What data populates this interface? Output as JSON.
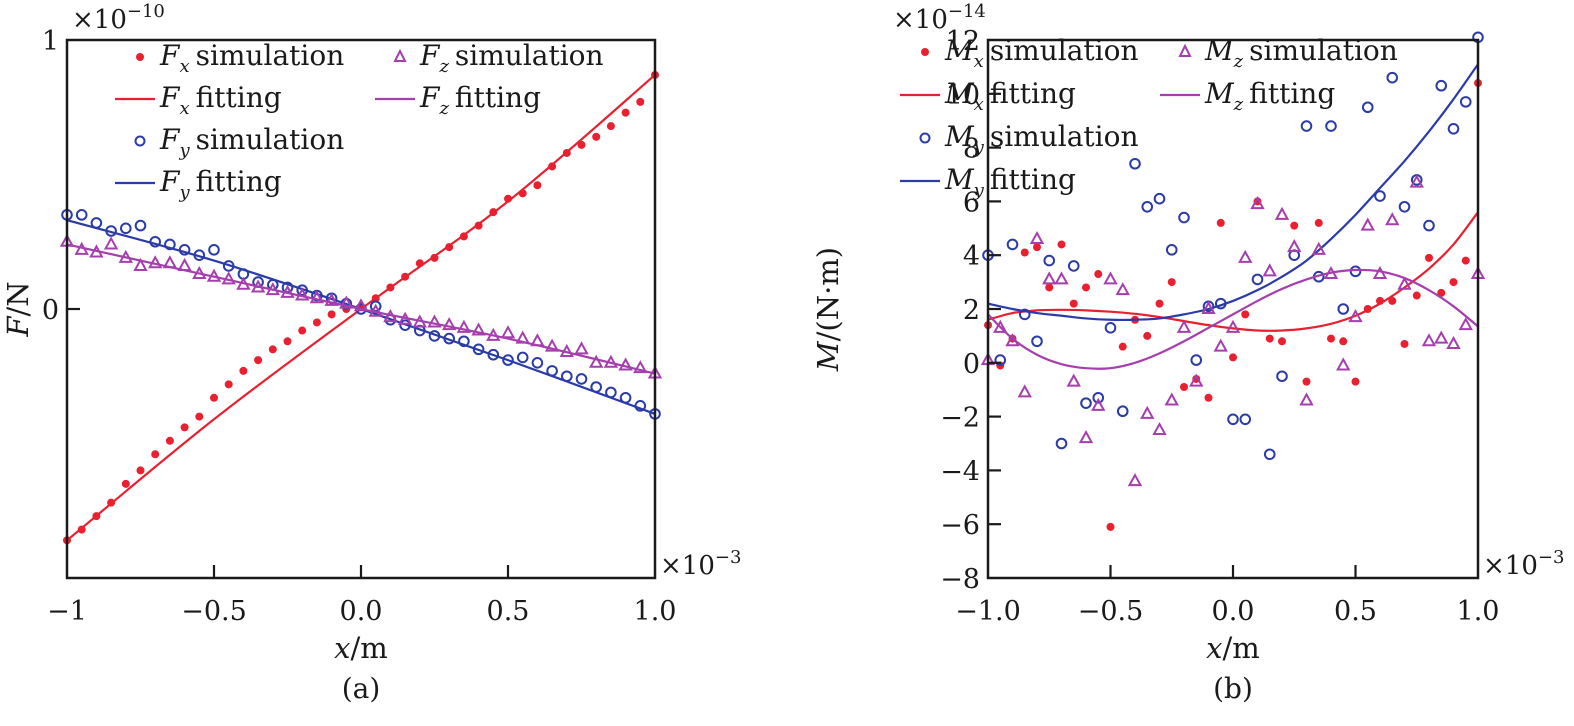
{
  "chart_data": [
    {
      "id": "a",
      "type": "scatter",
      "caption": "(a)",
      "xlabel": "x/m",
      "xlabel_var": "x",
      "xlabel_unit": "/m",
      "ylabel": "F/N",
      "ylabel_var": "F",
      "ylabel_unit": "/N",
      "x_multiplier": "×10",
      "x_multiplier_exp": "−3",
      "y_multiplier": "×10",
      "y_multiplier_exp": "−10",
      "xlim": [
        -1.0,
        1.0
      ],
      "ylim": [
        -1.0,
        1.0
      ],
      "xticks": [
        -1.0,
        -0.5,
        0.0,
        0.5,
        1.0
      ],
      "xtick_labels": [
        "−1",
        "−0.5",
        "0.0",
        "0.5",
        "1.0"
      ],
      "yticks": [
        0,
        1
      ],
      "ytick_labels": [
        "0",
        "1"
      ],
      "legend": [
        {
          "sym": "F",
          "sub": "x",
          "text": "simulation",
          "kind": "dot",
          "color": "#e8202f"
        },
        {
          "sym": "F",
          "sub": "x",
          "text": "fitting",
          "kind": "line",
          "color": "#e8202f"
        },
        {
          "sym": "F",
          "sub": "y",
          "text": "simulation",
          "kind": "circle",
          "color": "#2b3ba8"
        },
        {
          "sym": "F",
          "sub": "y",
          "text": "fitting",
          "kind": "line",
          "color": "#2b3ba8"
        },
        {
          "sym": "F",
          "sub": "z",
          "text": "simulation",
          "kind": "triangle",
          "color": "#a53fae"
        },
        {
          "sym": "F",
          "sub": "z",
          "text": "fitting",
          "kind": "line",
          "color": "#a53fae"
        }
      ],
      "legend_placement": "top-left",
      "series": [
        {
          "name": "Fx simulation",
          "kind": "dot",
          "color": "#e8202f",
          "x": [
            -1.0,
            -0.95,
            -0.9,
            -0.85,
            -0.8,
            -0.75,
            -0.7,
            -0.65,
            -0.6,
            -0.55,
            -0.5,
            -0.45,
            -0.4,
            -0.35,
            -0.3,
            -0.25,
            -0.2,
            -0.15,
            -0.1,
            -0.05,
            0.0,
            0.05,
            0.1,
            0.15,
            0.2,
            0.25,
            0.3,
            0.35,
            0.4,
            0.45,
            0.5,
            0.55,
            0.6,
            0.65,
            0.7,
            0.75,
            0.8,
            0.85,
            0.9,
            0.95,
            1.0
          ],
          "y": [
            -0.86,
            -0.82,
            -0.77,
            -0.72,
            -0.65,
            -0.6,
            -0.54,
            -0.49,
            -0.44,
            -0.4,
            -0.33,
            -0.28,
            -0.23,
            -0.19,
            -0.15,
            -0.12,
            -0.08,
            -0.05,
            -0.02,
            0.0,
            0.01,
            0.04,
            0.08,
            0.12,
            0.17,
            0.19,
            0.23,
            0.27,
            0.31,
            0.36,
            0.41,
            0.43,
            0.46,
            0.53,
            0.58,
            0.61,
            0.64,
            0.68,
            0.73,
            0.77,
            0.87
          ]
        },
        {
          "name": "Fx fitting",
          "kind": "line",
          "color": "#e8202f",
          "x": [
            -1.0,
            -0.5,
            0.0,
            0.5,
            1.0
          ],
          "y": [
            -0.86,
            -0.41,
            0.0,
            0.4,
            0.87
          ]
        },
        {
          "name": "Fy simulation",
          "kind": "circle",
          "color": "#2b3ba8",
          "x": [
            -1.0,
            -0.95,
            -0.9,
            -0.85,
            -0.8,
            -0.75,
            -0.7,
            -0.65,
            -0.6,
            -0.55,
            -0.5,
            -0.45,
            -0.4,
            -0.35,
            -0.3,
            -0.25,
            -0.2,
            -0.15,
            -0.1,
            -0.05,
            0.0,
            0.05,
            0.1,
            0.15,
            0.2,
            0.25,
            0.3,
            0.35,
            0.4,
            0.45,
            0.5,
            0.55,
            0.6,
            0.65,
            0.7,
            0.75,
            0.8,
            0.85,
            0.9,
            0.95,
            1.0
          ],
          "y": [
            0.35,
            0.35,
            0.32,
            0.29,
            0.3,
            0.31,
            0.25,
            0.24,
            0.22,
            0.2,
            0.22,
            0.16,
            0.13,
            0.1,
            0.09,
            0.08,
            0.07,
            0.05,
            0.04,
            0.02,
            0.0,
            0.01,
            -0.04,
            -0.06,
            -0.08,
            -0.1,
            -0.11,
            -0.12,
            -0.15,
            -0.17,
            -0.19,
            -0.18,
            -0.2,
            -0.23,
            -0.25,
            -0.26,
            -0.29,
            -0.31,
            -0.33,
            -0.36,
            -0.39
          ]
        },
        {
          "name": "Fy fitting",
          "kind": "line",
          "color": "#2b3ba8",
          "x": [
            -1.0,
            -0.5,
            0.0,
            0.5,
            1.0
          ],
          "y": [
            0.33,
            0.18,
            0.0,
            -0.19,
            -0.39
          ]
        },
        {
          "name": "Fz simulation",
          "kind": "triangle",
          "color": "#a53fae",
          "x": [
            -1.0,
            -0.95,
            -0.9,
            -0.85,
            -0.8,
            -0.75,
            -0.7,
            -0.65,
            -0.6,
            -0.55,
            -0.5,
            -0.45,
            -0.4,
            -0.35,
            -0.3,
            -0.25,
            -0.2,
            -0.15,
            -0.1,
            -0.05,
            0.0,
            0.05,
            0.1,
            0.15,
            0.2,
            0.25,
            0.3,
            0.35,
            0.4,
            0.45,
            0.5,
            0.55,
            0.6,
            0.65,
            0.7,
            0.75,
            0.8,
            0.85,
            0.9,
            0.95,
            1.0
          ],
          "y": [
            0.25,
            0.22,
            0.21,
            0.24,
            0.19,
            0.16,
            0.17,
            0.17,
            0.16,
            0.13,
            0.12,
            0.11,
            0.09,
            0.08,
            0.07,
            0.06,
            0.05,
            0.04,
            0.03,
            0.02,
            0.01,
            -0.01,
            -0.03,
            -0.04,
            -0.05,
            -0.05,
            -0.06,
            -0.07,
            -0.08,
            -0.1,
            -0.09,
            -0.11,
            -0.12,
            -0.14,
            -0.16,
            -0.15,
            -0.2,
            -0.2,
            -0.21,
            -0.22,
            -0.24
          ]
        },
        {
          "name": "Fz fitting",
          "kind": "line",
          "color": "#a53fae",
          "x": [
            -1.0,
            -0.5,
            0.0,
            0.5,
            1.0
          ],
          "y": [
            0.24,
            0.12,
            0.0,
            -0.11,
            -0.24
          ]
        }
      ]
    },
    {
      "id": "b",
      "type": "scatter",
      "caption": "(b)",
      "xlabel": "x/m",
      "xlabel_var": "x",
      "xlabel_unit": "/m",
      "ylabel": "M/(N·m)",
      "ylabel_var": "M",
      "ylabel_unit": "/(N·m)",
      "x_multiplier": "×10",
      "x_multiplier_exp": "−3",
      "y_multiplier": "×10",
      "y_multiplier_exp": "−14",
      "xlim": [
        -1.0,
        1.0
      ],
      "ylim": [
        -8,
        12
      ],
      "xticks": [
        -1.0,
        -0.5,
        0.0,
        0.5,
        1.0
      ],
      "xtick_labels": [
        "−1.0",
        "−0.5",
        "0.0",
        "0.5",
        "1.0"
      ],
      "yticks": [
        -8,
        -6,
        -4,
        -2,
        0,
        2,
        4,
        6,
        8,
        10,
        12
      ],
      "ytick_labels": [
        "−8",
        "−6",
        "−4",
        "−2",
        "0",
        "2",
        "4",
        "6",
        "8",
        "10",
        "12"
      ],
      "legend": [
        {
          "sym": "M",
          "sub": "x",
          "text": "simulation",
          "kind": "dot",
          "color": "#e8202f"
        },
        {
          "sym": "M",
          "sub": "x",
          "text": "fitting",
          "kind": "line",
          "color": "#e8202f"
        },
        {
          "sym": "M",
          "sub": "y",
          "text": "simulation",
          "kind": "circle",
          "color": "#2b3ba8"
        },
        {
          "sym": "M",
          "sub": "y",
          "text": "fitting",
          "kind": "line",
          "color": "#2b3ba8"
        },
        {
          "sym": "M",
          "sub": "z",
          "text": "simulation",
          "kind": "triangle",
          "color": "#a53fae"
        },
        {
          "sym": "M",
          "sub": "z",
          "text": "fitting",
          "kind": "line",
          "color": "#a53fae"
        }
      ],
      "legend_placement": "top-left",
      "series": [
        {
          "name": "Mx simulation",
          "kind": "dot",
          "color": "#e8202f",
          "x": [
            -1.0,
            -0.95,
            -0.9,
            -0.85,
            -0.8,
            -0.75,
            -0.7,
            -0.65,
            -0.6,
            -0.55,
            -0.5,
            -0.45,
            -0.4,
            -0.35,
            -0.3,
            -0.25,
            -0.2,
            -0.15,
            -0.1,
            -0.05,
            0.0,
            0.05,
            0.1,
            0.15,
            0.2,
            0.25,
            0.3,
            0.35,
            0.4,
            0.45,
            0.5,
            0.55,
            0.6,
            0.65,
            0.7,
            0.75,
            0.8,
            0.85,
            0.9,
            0.95,
            1.0
          ],
          "y": [
            1.4,
            -0.1,
            0.9,
            4.1,
            4.3,
            2.8,
            4.4,
            2.2,
            2.8,
            3.3,
            -6.1,
            0.6,
            1.6,
            1.0,
            2.2,
            3.0,
            -0.9,
            -0.6,
            -1.3,
            5.2,
            0.2,
            1.8,
            6.0,
            0.9,
            0.8,
            5.1,
            -0.7,
            5.2,
            0.9,
            0.8,
            -0.7,
            2.0,
            2.3,
            2.3,
            0.7,
            2.5,
            3.9,
            2.6,
            3.0,
            3.8,
            10.4
          ]
        },
        {
          "name": "Mx fitting",
          "kind": "line",
          "color": "#e8202f",
          "x": [
            -1.0,
            -0.9,
            -0.8,
            -0.7,
            -0.6,
            -0.5,
            -0.4,
            -0.3,
            -0.2,
            -0.1,
            0.0,
            0.1,
            0.2,
            0.3,
            0.4,
            0.5,
            0.6,
            0.7,
            0.8,
            0.9,
            1.0
          ],
          "y": [
            1.6,
            1.85,
            1.95,
            1.97,
            1.95,
            1.9,
            1.82,
            1.7,
            1.55,
            1.4,
            1.28,
            1.2,
            1.2,
            1.28,
            1.45,
            1.75,
            2.2,
            2.8,
            3.5,
            4.4,
            5.6
          ]
        },
        {
          "name": "My simulation",
          "kind": "circle",
          "color": "#2b3ba8",
          "x": [
            -1.0,
            -0.95,
            -0.9,
            -0.85,
            -0.8,
            -0.75,
            -0.7,
            -0.65,
            -0.6,
            -0.55,
            -0.5,
            -0.45,
            -0.4,
            -0.35,
            -0.3,
            -0.25,
            -0.2,
            -0.15,
            -0.1,
            -0.05,
            0.0,
            0.05,
            0.1,
            0.15,
            0.2,
            0.25,
            0.3,
            0.35,
            0.4,
            0.45,
            0.5,
            0.55,
            0.6,
            0.65,
            0.7,
            0.75,
            0.8,
            0.85,
            0.9,
            0.95,
            1.0
          ],
          "y": [
            4.0,
            0.1,
            4.4,
            1.8,
            0.8,
            3.8,
            -3.0,
            3.6,
            -1.5,
            -1.3,
            1.3,
            -1.8,
            7.4,
            5.8,
            6.1,
            4.2,
            5.4,
            0.1,
            2.1,
            2.2,
            -2.1,
            -2.1,
            3.1,
            -3.4,
            -0.5,
            4.0,
            8.8,
            3.2,
            8.8,
            2.0,
            3.4,
            9.5,
            6.2,
            10.6,
            5.8,
            6.8,
            5.1,
            10.3,
            8.7,
            9.7,
            12.1
          ]
        },
        {
          "name": "My fitting",
          "kind": "line",
          "color": "#2b3ba8",
          "x": [
            -1.0,
            -0.9,
            -0.8,
            -0.7,
            -0.6,
            -0.5,
            -0.4,
            -0.3,
            -0.2,
            -0.1,
            0.0,
            0.1,
            0.2,
            0.3,
            0.4,
            0.5,
            0.6,
            0.7,
            0.8,
            0.9,
            1.0
          ],
          "y": [
            2.2,
            2.0,
            1.85,
            1.75,
            1.65,
            1.6,
            1.6,
            1.65,
            1.8,
            2.0,
            2.3,
            2.7,
            3.2,
            3.8,
            4.6,
            5.5,
            6.5,
            7.5,
            8.6,
            9.8,
            11.1
          ]
        },
        {
          "name": "Mz simulation",
          "kind": "triangle",
          "color": "#a53fae",
          "x": [
            -1.0,
            -0.95,
            -0.9,
            -0.85,
            -0.8,
            -0.75,
            -0.7,
            -0.65,
            -0.6,
            -0.55,
            -0.5,
            -0.45,
            -0.4,
            -0.35,
            -0.3,
            -0.25,
            -0.2,
            -0.15,
            -0.1,
            -0.05,
            0.0,
            0.05,
            0.1,
            0.15,
            0.2,
            0.25,
            0.3,
            0.35,
            0.4,
            0.45,
            0.5,
            0.55,
            0.6,
            0.65,
            0.7,
            0.75,
            0.8,
            0.85,
            0.9,
            0.95,
            1.0
          ],
          "y": [
            0.1,
            1.3,
            0.8,
            -1.1,
            4.6,
            3.1,
            3.1,
            -0.7,
            -2.8,
            -1.6,
            3.1,
            2.7,
            -4.4,
            -1.9,
            -2.5,
            -1.4,
            1.3,
            -0.7,
            2.0,
            0.6,
            1.3,
            3.9,
            5.9,
            3.4,
            5.5,
            4.3,
            -1.4,
            4.2,
            3.3,
            -0.1,
            1.7,
            5.1,
            3.3,
            5.3,
            2.9,
            6.7,
            0.8,
            0.9,
            0.7,
            1.4,
            3.3
          ]
        },
        {
          "name": "Mz fitting",
          "kind": "line",
          "color": "#a53fae",
          "x": [
            -1.0,
            -0.9,
            -0.8,
            -0.7,
            -0.6,
            -0.5,
            -0.4,
            -0.3,
            -0.2,
            -0.1,
            0.0,
            0.1,
            0.2,
            0.3,
            0.4,
            0.5,
            0.6,
            0.7,
            0.8,
            0.9,
            1.0
          ],
          "y": [
            1.8,
            0.9,
            0.3,
            -0.05,
            -0.2,
            -0.2,
            0.0,
            0.35,
            0.8,
            1.3,
            1.8,
            2.3,
            2.75,
            3.1,
            3.35,
            3.45,
            3.4,
            3.15,
            2.7,
            2.1,
            1.35
          ]
        }
      ]
    }
  ]
}
